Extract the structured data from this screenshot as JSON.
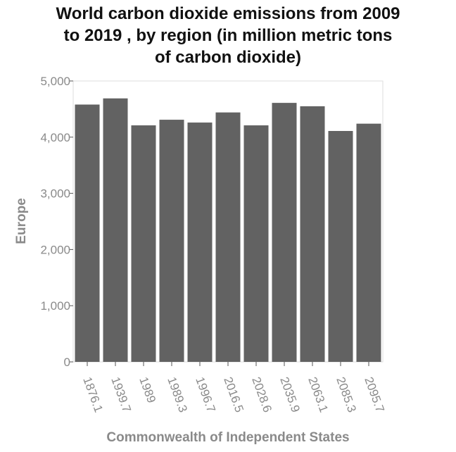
{
  "title_lines": [
    "World carbon dioxide emissions from 2009",
    "to 2019 , by region (in million metric tons",
    "of carbon dioxide)"
  ],
  "chart_data": {
    "type": "bar",
    "title": "World carbon dioxide emissions from 2009 to 2019 , by region (in million metric tons of carbon dioxide)",
    "xlabel": "Commonwealth of Independent States",
    "ylabel": "Europe",
    "categories": [
      "1876.1",
      "1939.7",
      "1989",
      "1989.3",
      "1996.7",
      "2016.5",
      "2028.6",
      "2035.9",
      "2063.1",
      "2085.3",
      "2095.7"
    ],
    "values": [
      4580,
      4690,
      4210,
      4310,
      4260,
      4440,
      4210,
      4610,
      4550,
      4110,
      4240
    ],
    "ylim": [
      0,
      5000
    ],
    "yticks": [
      0,
      1000,
      2000,
      3000,
      4000,
      5000
    ],
    "ytick_labels": [
      "0",
      "1,000",
      "2,000",
      "3,000",
      "4,000",
      "5,000"
    ],
    "bar_color": "#626262",
    "grid": false,
    "legend": "none"
  }
}
